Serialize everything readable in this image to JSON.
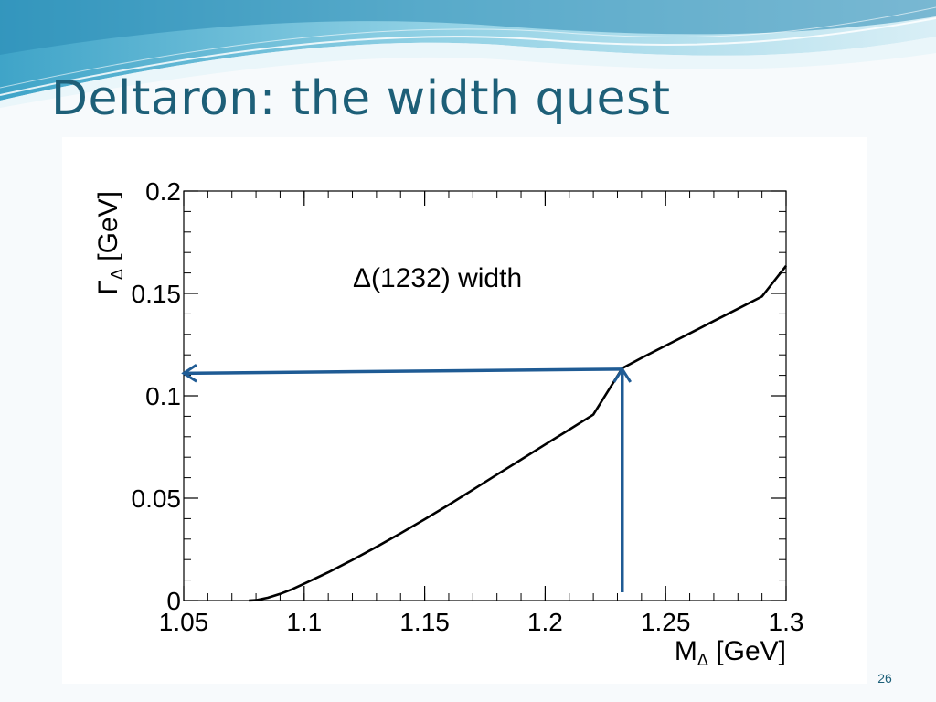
{
  "slide": {
    "title": "Deltaron: the width quest",
    "page_number": "26"
  },
  "colors": {
    "title": "#1d5f78",
    "arrow": "#1f5b94",
    "curve": "#000000",
    "banner_light": "#cfe9f2",
    "banner_mid": "#7fc4dc",
    "banner_dark": "#2f8fb8"
  },
  "chart_data": {
    "type": "line",
    "title": "",
    "annotation": "Δ(1232) width",
    "xlabel": "M_Δ [GeV]",
    "ylabel": "Γ_Δ [GeV]",
    "xlim": [
      1.05,
      1.3
    ],
    "ylim": [
      0,
      0.2
    ],
    "x_ticks": [
      "1.05",
      "1.1",
      "1.15",
      "1.2",
      "1.25",
      "1.3"
    ],
    "y_ticks": [
      "0",
      "0.05",
      "0.1",
      "0.15",
      "0.2"
    ],
    "grid": false,
    "series": [
      {
        "x": [
          1.077,
          1.08,
          1.085,
          1.09,
          1.095,
          1.1,
          1.11,
          1.12,
          1.13,
          1.14,
          1.15,
          1.16,
          1.17,
          1.18,
          1.19,
          1.2,
          1.21,
          1.22,
          1.232,
          1.24,
          1.25,
          1.26,
          1.27,
          1.28,
          1.29,
          1.3
        ],
        "values": [
          0.0,
          0.0002,
          0.0014,
          0.0032,
          0.0055,
          0.0082,
          0.0138,
          0.0198,
          0.0262,
          0.0328,
          0.0397,
          0.0468,
          0.0541,
          0.0615,
          0.0688,
          0.0762,
          0.0835,
          0.0908,
          0.1135,
          0.1185,
          0.1245,
          0.1305,
          0.1365,
          0.1425,
          0.1485,
          0.1635
        ]
      }
    ],
    "arrows": [
      {
        "from": [
          1.232,
          0.004
        ],
        "to": [
          1.232,
          0.113
        ]
      },
      {
        "from": [
          1.232,
          0.113
        ],
        "to": [
          1.05,
          0.111
        ]
      }
    ]
  }
}
